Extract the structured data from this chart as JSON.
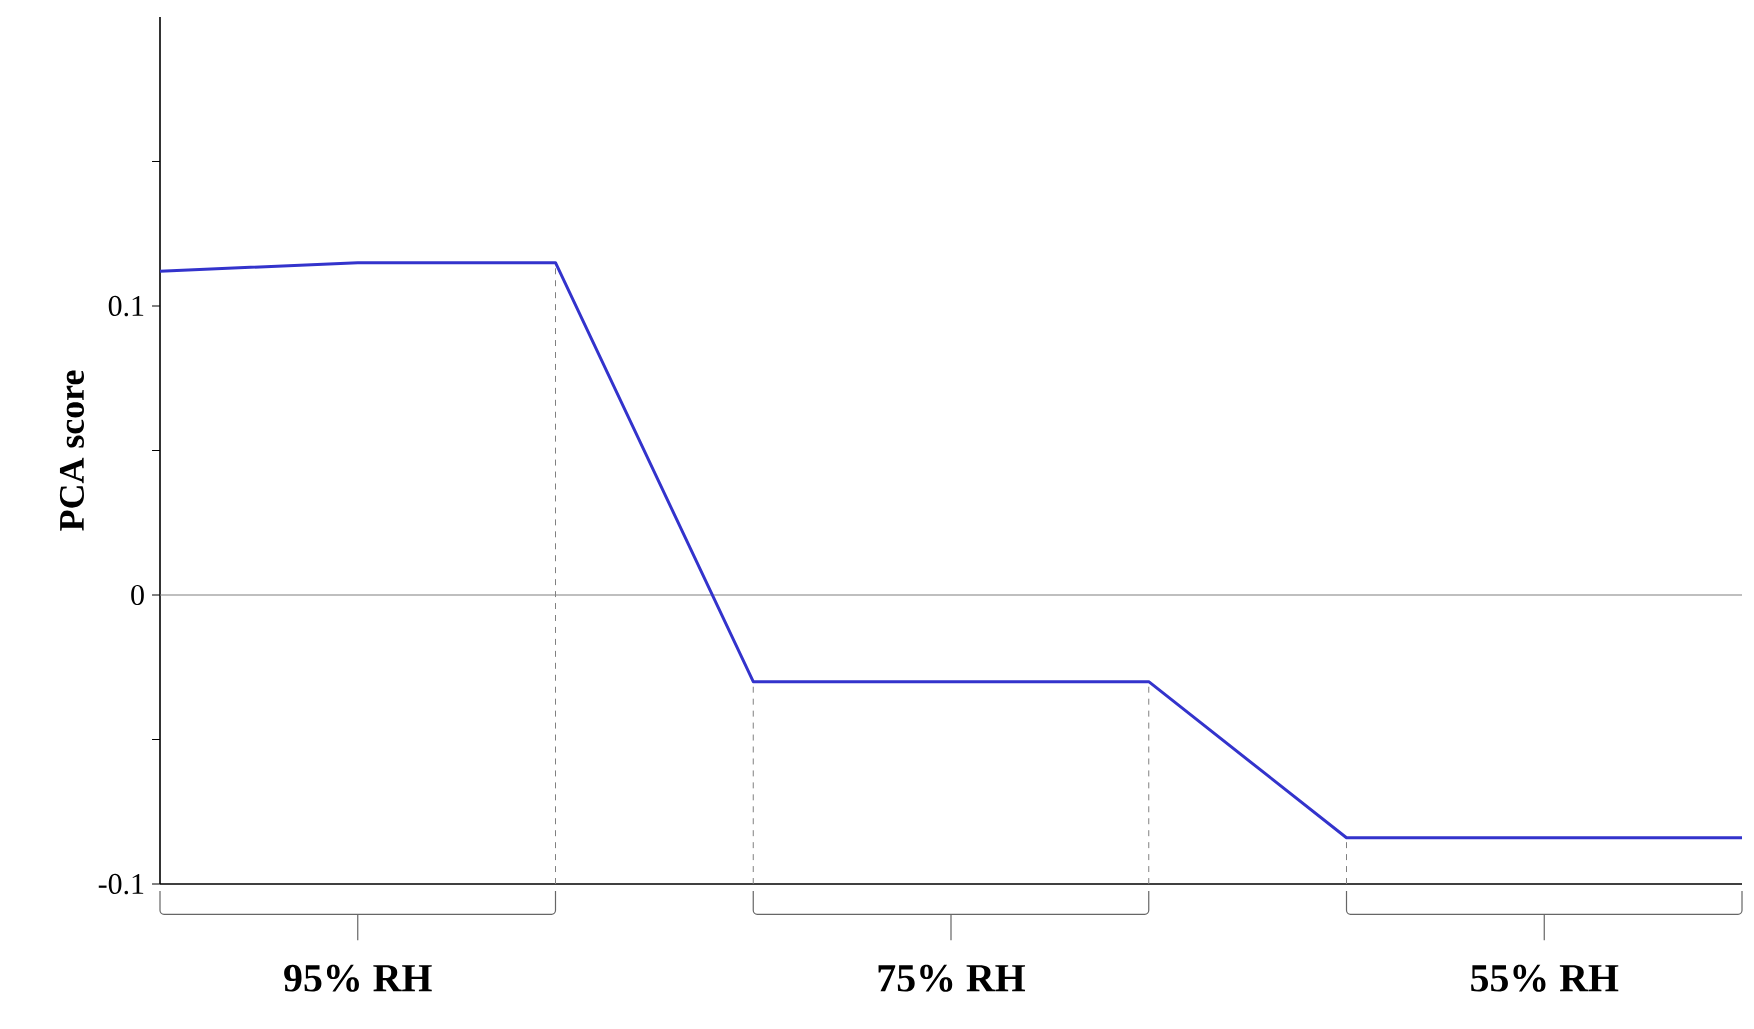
{
  "chart_data": {
    "type": "line",
    "ylabel": "PCA score",
    "categories": [
      null,
      null,
      null,
      null,
      null,
      null,
      null,
      null,
      null
    ],
    "ylim": [
      -0.1,
      0.2
    ],
    "yticks": [
      {
        "value": -0.1,
        "label": "-0.1"
      },
      {
        "value": -0.05,
        "label": null
      },
      {
        "value": 0,
        "label": "0"
      },
      {
        "value": 0.05,
        "label": null
      },
      {
        "value": 0.1,
        "label": "0.1"
      },
      {
        "value": 0.15,
        "label": null
      }
    ],
    "tick_labels": "y",
    "series": [
      {
        "color": "#3333cc",
        "values": [
          0.112,
          0.115,
          0.115,
          -0.03,
          -0.03,
          -0.03,
          -0.084,
          -0.084,
          -0.084
        ]
      }
    ],
    "ref_lines": [
      {
        "axis": "y",
        "value": 0,
        "color": "#808080"
      }
    ],
    "annotations": [
      "95% RH",
      "75% RH",
      "55% RH"
    ]
  }
}
